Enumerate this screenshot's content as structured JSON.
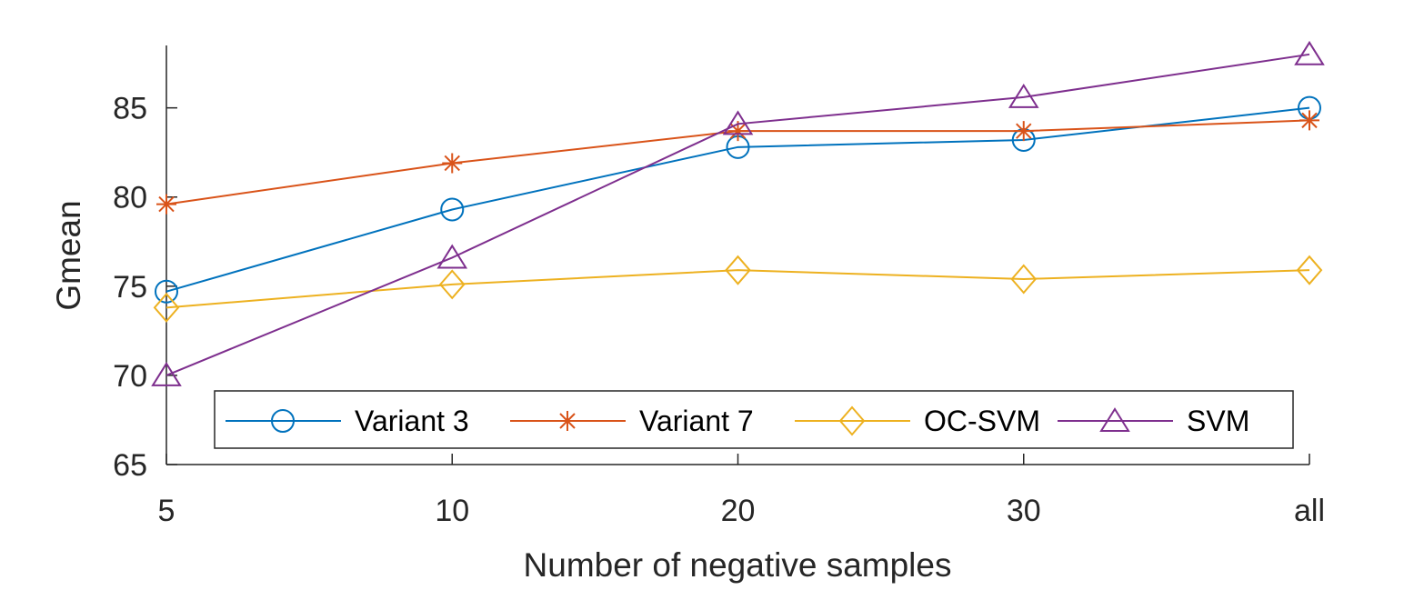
{
  "chart_data": {
    "type": "line",
    "title": "",
    "xlabel": "Number of negative samples",
    "ylabel": "Gmean",
    "categories": [
      "5",
      "10",
      "20",
      "30",
      "all"
    ],
    "ylim": [
      65,
      88.5
    ],
    "yticks": [
      65,
      70,
      75,
      80,
      85
    ],
    "grid": false,
    "legend_position": "bottom",
    "series": [
      {
        "name": "Variant 3",
        "marker": "circle",
        "color": "#0072BD",
        "values": [
          74.7,
          79.3,
          82.8,
          83.2,
          85.0
        ]
      },
      {
        "name": "Variant 7",
        "marker": "asterisk",
        "color": "#D95319",
        "values": [
          79.6,
          81.9,
          83.7,
          83.7,
          84.3
        ]
      },
      {
        "name": "OC-SVM",
        "marker": "diamond",
        "color": "#EDB120",
        "values": [
          73.8,
          75.1,
          75.9,
          75.4,
          75.9
        ]
      },
      {
        "name": "SVM",
        "marker": "triangle",
        "color": "#7E2F8E",
        "values": [
          70.0,
          76.6,
          84.1,
          85.6,
          88.0
        ]
      }
    ]
  }
}
